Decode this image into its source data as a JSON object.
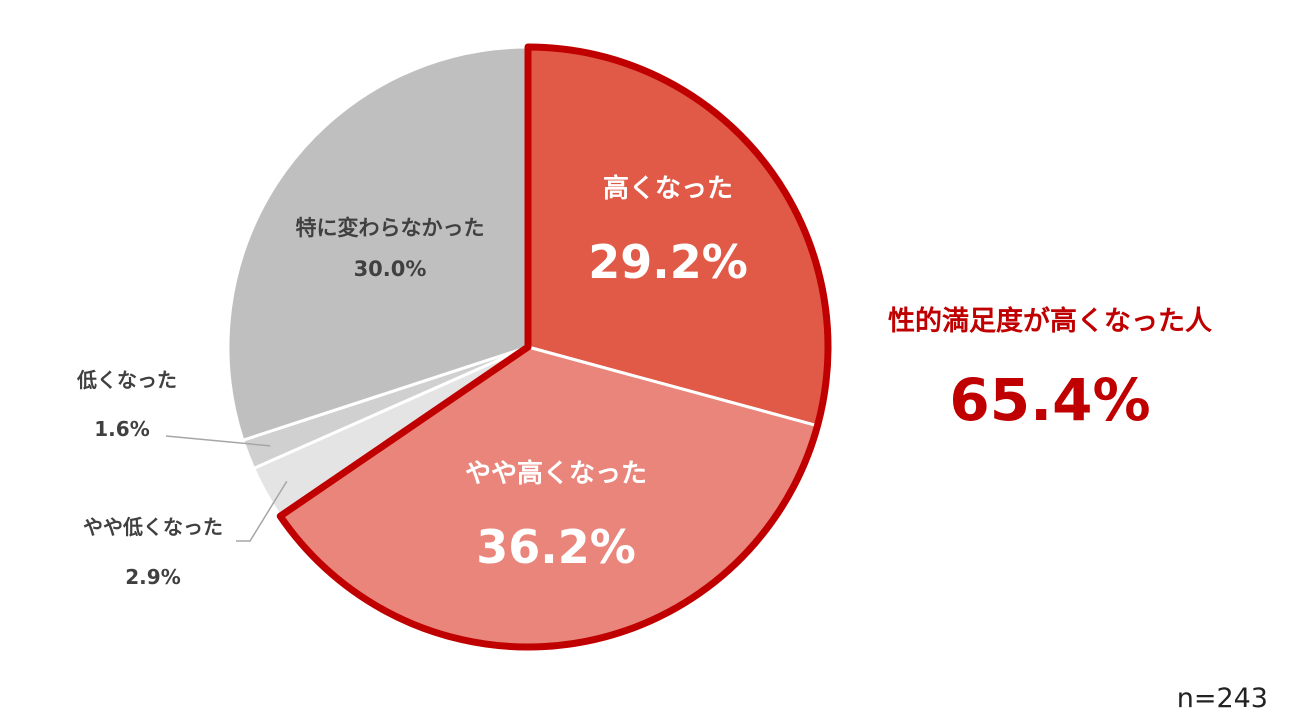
{
  "chart_data": {
    "type": "pie",
    "slices": [
      {
        "label": "高くなった",
        "value": 29.2,
        "value_label": "29.2%",
        "color": "#e05a47"
      },
      {
        "label": "やや高くなった",
        "value": 36.2,
        "value_label": "36.2%",
        "color": "#e9857a"
      },
      {
        "label": "やや低くなった",
        "value": 2.9,
        "value_label": "2.9%",
        "color": "#e4e4e4"
      },
      {
        "label": "低くなった",
        "value": 1.6,
        "value_label": "1.6%",
        "color": "#d0d0d0"
      },
      {
        "label": "特に変わらなかった",
        "value": 30.0,
        "value_label": "30.0%",
        "color": "#bfbfbf"
      }
    ],
    "highlight": {
      "label": "性的満足度が高くなった人",
      "value": 65.4,
      "value_label": "65.4%",
      "color": "#c00000",
      "includes": [
        "高くなった",
        "やや高くなった"
      ]
    },
    "sample_note": "n=243"
  }
}
